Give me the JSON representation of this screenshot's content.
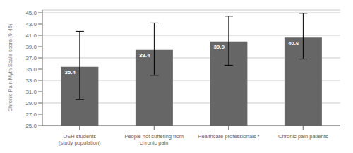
{
  "chart_data": {
    "type": "bar",
    "categories": [
      "OSH students\n(study population)",
      "People not suffering from\nchronic pain",
      "Healthcare professionals *",
      "Chronic pain patients"
    ],
    "values": [
      35.4,
      38.4,
      39.9,
      40.6
    ],
    "value_labels": [
      "35.4",
      "38.4",
      "39.9",
      "40.6"
    ],
    "errors_up": [
      6.3,
      4.8,
      4.5,
      4.3
    ],
    "errors_down": [
      5.8,
      4.5,
      4.2,
      3.8
    ],
    "color": "#666666",
    "ylabel": "Chronic Pain Myth Scale score (9-45)",
    "ylim": [
      25.0,
      45.5
    ],
    "yticks": [
      {
        "value": 25,
        "label": "25.0"
      },
      {
        "value": 27,
        "label": "27.0"
      },
      {
        "value": 29,
        "label": "29.0"
      },
      {
        "value": 31,
        "label": "31.0"
      },
      {
        "value": 33,
        "label": "33.0"
      },
      {
        "value": 35,
        "label": "35.0"
      },
      {
        "value": 37,
        "label": "37.0"
      },
      {
        "value": 39,
        "label": "39.0"
      },
      {
        "value": 41,
        "label": "41.0"
      },
      {
        "value": 43,
        "label": "43.0"
      },
      {
        "value": 45,
        "label": "45.0"
      }
    ],
    "grid": true,
    "data_labels": true
  }
}
